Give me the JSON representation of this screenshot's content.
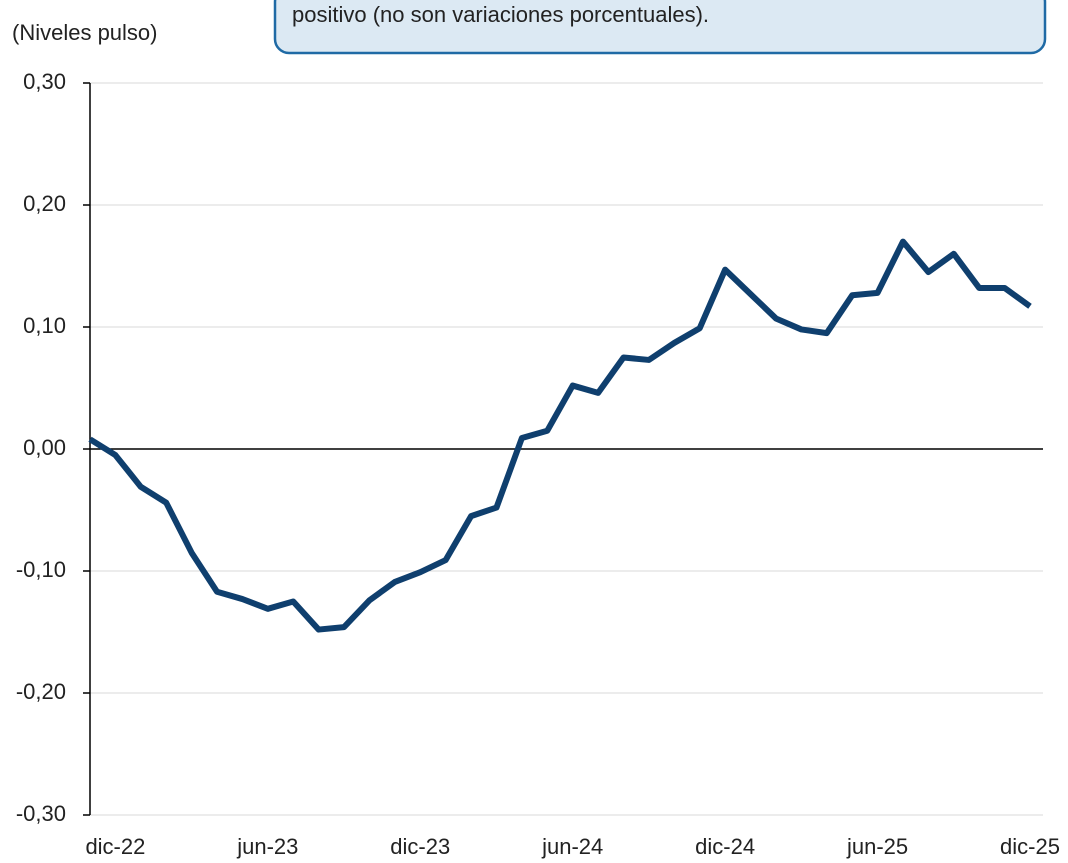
{
  "chart_data": {
    "type": "line",
    "ylabel": "(Niveles pulso)",
    "annotation": "positivo (no son variaciones porcentuales).",
    "categories": [
      null,
      "dic-22",
      null,
      null,
      null,
      null,
      null,
      "jun-23",
      null,
      null,
      null,
      null,
      null,
      "dic-23",
      null,
      null,
      null,
      null,
      null,
      "jun-24",
      null,
      null,
      null,
      null,
      null,
      "dic-24",
      null,
      null,
      null,
      null,
      null,
      "jun-25",
      null,
      null,
      null,
      null,
      null,
      "dic-25"
    ],
    "series": [
      {
        "name": "Niveles pulso",
        "color": "#0f3f6e",
        "values": [
          0.008,
          -0.005,
          -0.031,
          -0.044,
          -0.085,
          -0.117,
          -0.123,
          -0.131,
          -0.125,
          -0.148,
          -0.146,
          -0.124,
          -0.109,
          -0.101,
          -0.091,
          -0.055,
          -0.048,
          0.009,
          0.015,
          0.052,
          0.046,
          0.075,
          0.073,
          0.087,
          0.099,
          0.147,
          0.127,
          0.107,
          0.098,
          0.095,
          0.126,
          0.128,
          0.17,
          0.145,
          0.16,
          0.132,
          0.132,
          0.117
        ]
      }
    ],
    "ylim": [
      -0.3,
      0.3
    ],
    "yticks": [
      {
        "value": -0.3,
        "label": "-0,30"
      },
      {
        "value": -0.2,
        "label": "-0,20"
      },
      {
        "value": -0.1,
        "label": "-0,10"
      },
      {
        "value": 0,
        "label": "0,00"
      },
      {
        "value": 0.1,
        "label": "0,10"
      },
      {
        "value": 0.2,
        "label": "0,20"
      },
      {
        "value": 0.3,
        "label": "0,30"
      }
    ],
    "grid": true
  }
}
